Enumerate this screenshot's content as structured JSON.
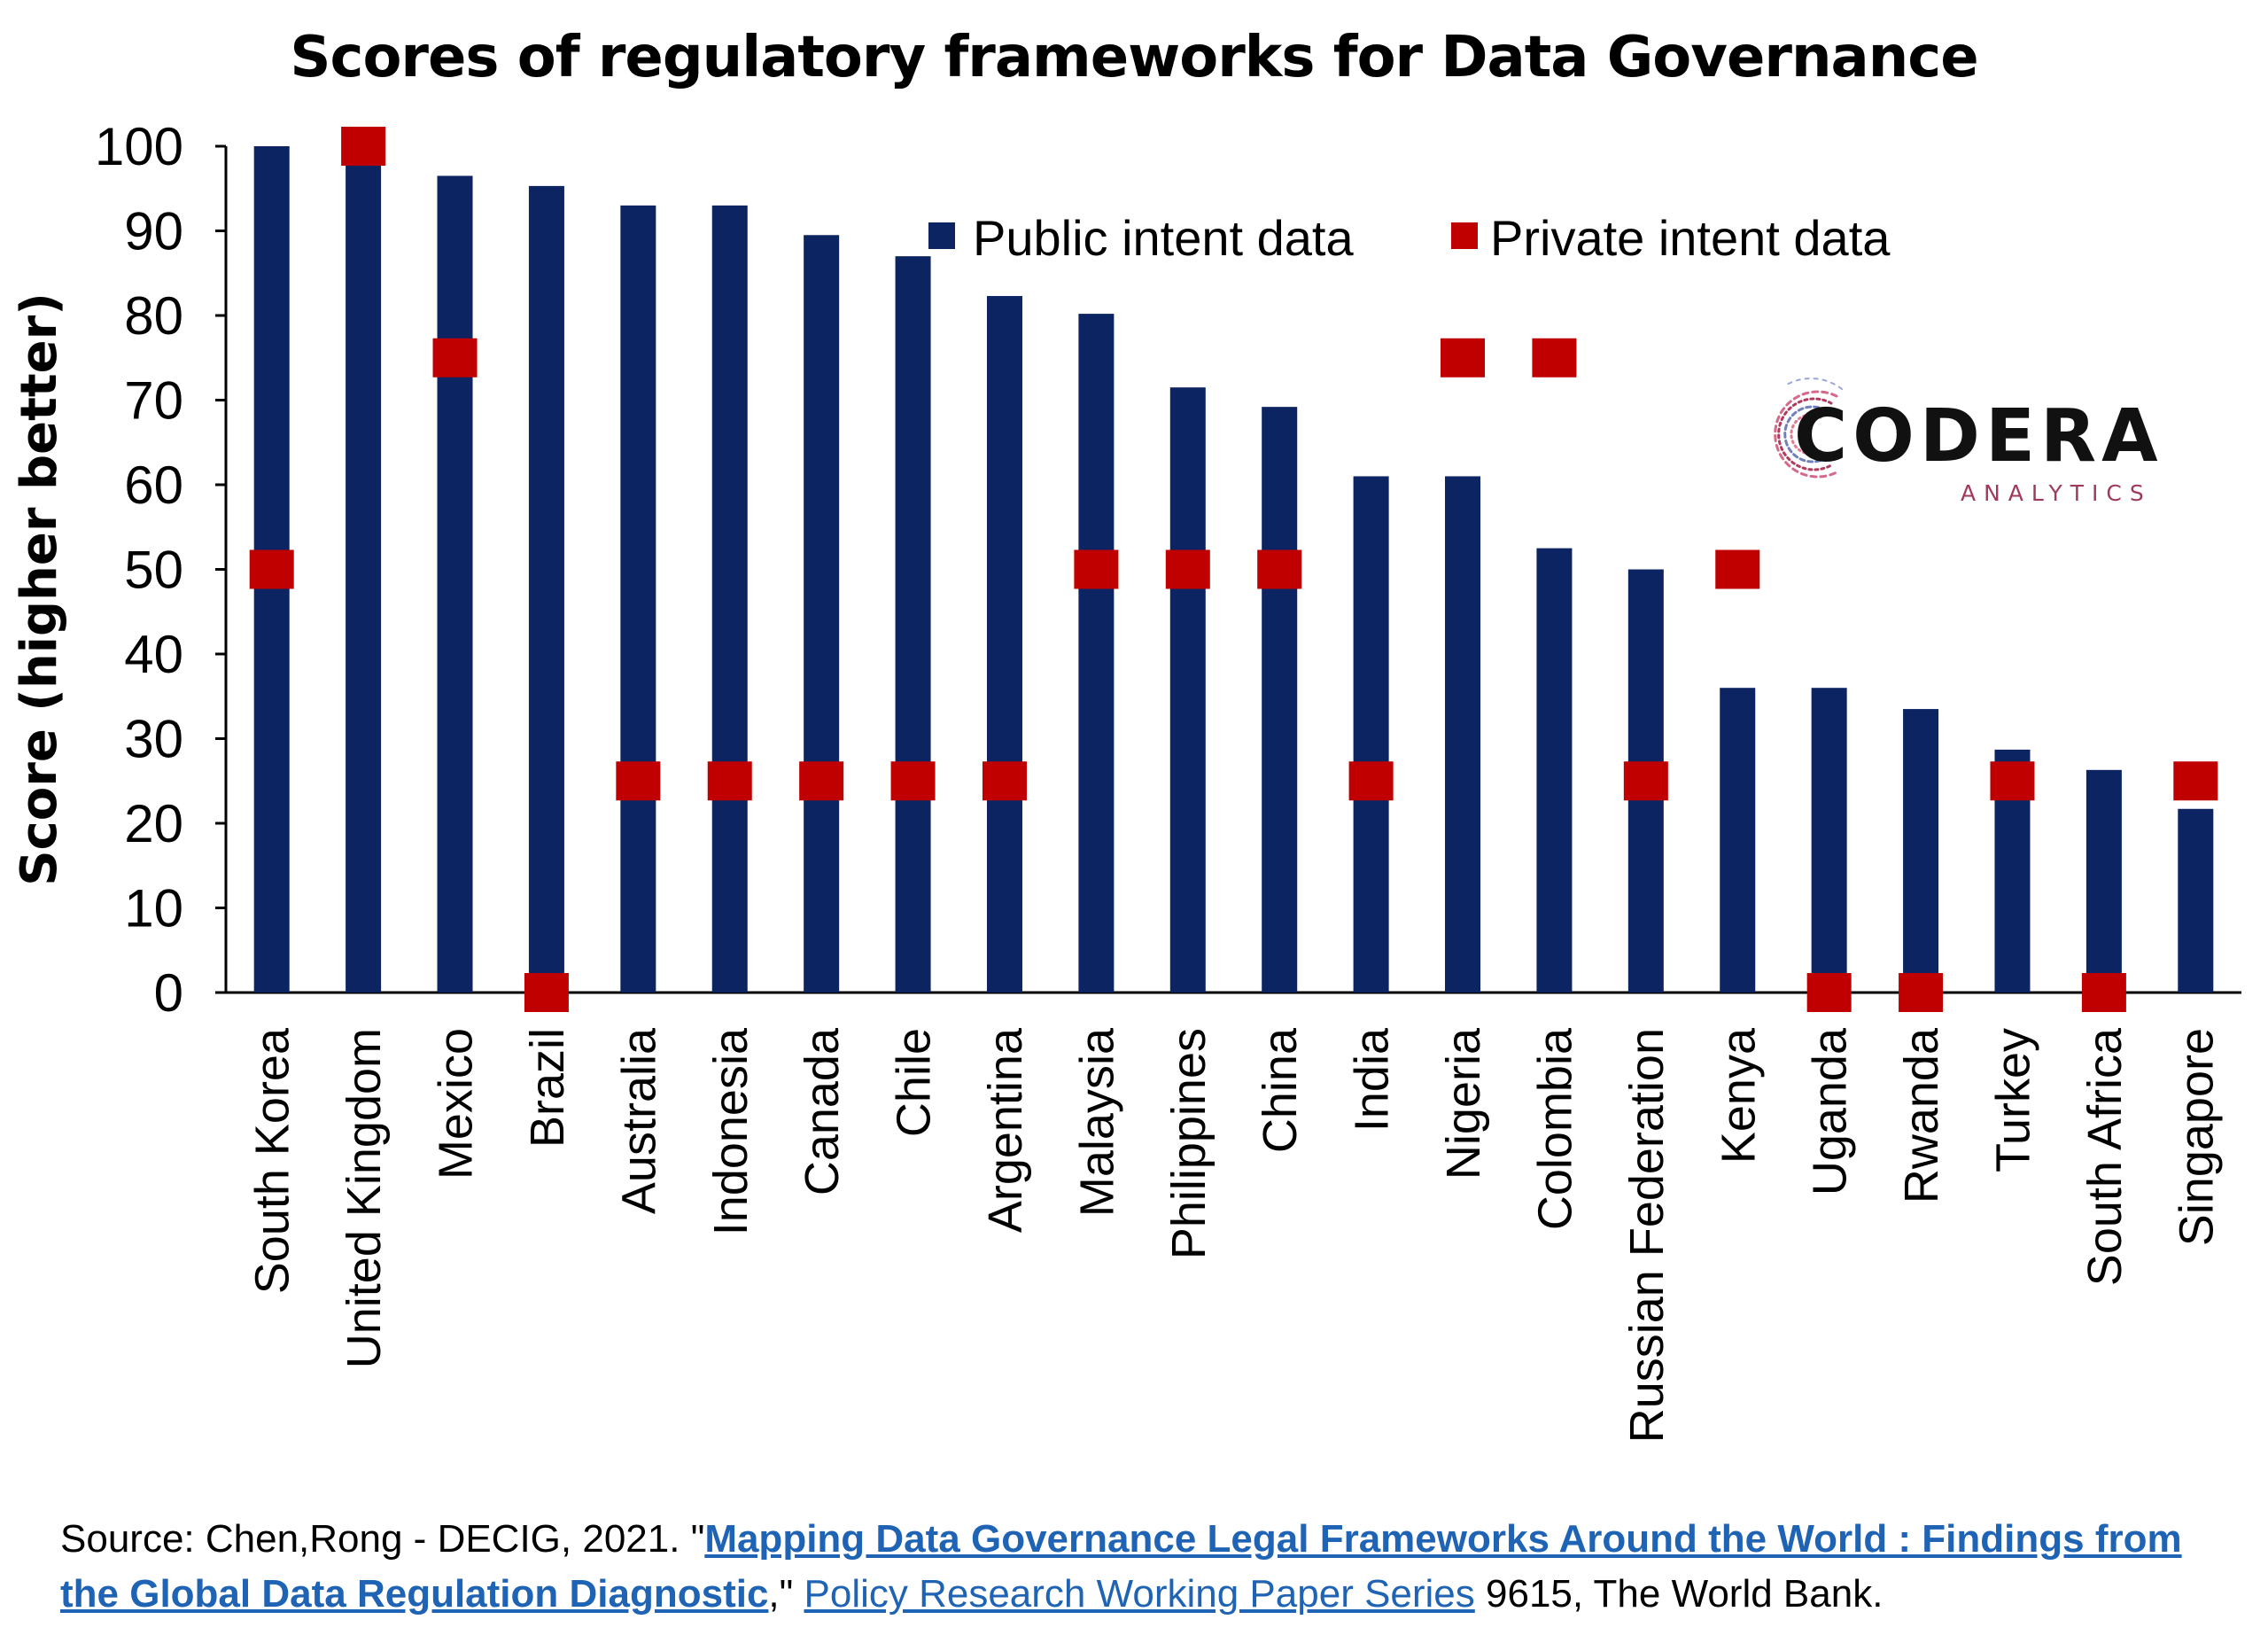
{
  "chart_data": {
    "type": "bar",
    "title": "Scores of regulatory frameworks for Data Governance",
    "ylabel": "Score (higher better)",
    "xlabel": "",
    "ylim": [
      0,
      100
    ],
    "yticks": [
      0,
      10,
      20,
      30,
      40,
      50,
      60,
      70,
      80,
      90,
      100
    ],
    "legend_position": "top-right",
    "categories": [
      "South Korea",
      "United Kingdom",
      "Mexico",
      "Brazil",
      "Australia",
      "Indonesia",
      "Canada",
      "Chile",
      "Argentina",
      "Malaysia",
      "Philippines",
      "China",
      "India",
      "Nigeria",
      "Colombia",
      "Russian Federation",
      "Kenya",
      "Uganda",
      "Rwanda",
      "Turkey",
      "South Africa",
      "Singapore"
    ],
    "series": [
      {
        "name": "Public intent data",
        "type": "bar",
        "color": "#0c2461",
        "values": [
          100,
          98,
          96.5,
          95.3,
          93,
          93,
          89.5,
          87,
          82.3,
          80.2,
          71.5,
          69.2,
          61,
          61,
          52.5,
          50,
          36,
          36,
          33.5,
          28.7,
          26.3,
          21.7
        ]
      },
      {
        "name": "Private intent data",
        "type": "marker",
        "color": "#c00000",
        "values": [
          50,
          100,
          75,
          0,
          25,
          25,
          25,
          25,
          25,
          50,
          50,
          50,
          25,
          75,
          75,
          25,
          50,
          0,
          0,
          25,
          0,
          25
        ]
      }
    ]
  },
  "logo": {
    "name": "CODERA",
    "sub": "ANALYTICS"
  },
  "source": {
    "prefix": "Source: Chen,Rong - DECIG, 2021. \"",
    "title_link": "Mapping Data Governance Legal Frameworks Around the World : Findings from the Global Data Regulation Diagnostic",
    "mid": ",\" ",
    "series_link": "Policy Research Working Paper Series",
    "suffix": " 9615, The World Bank."
  }
}
